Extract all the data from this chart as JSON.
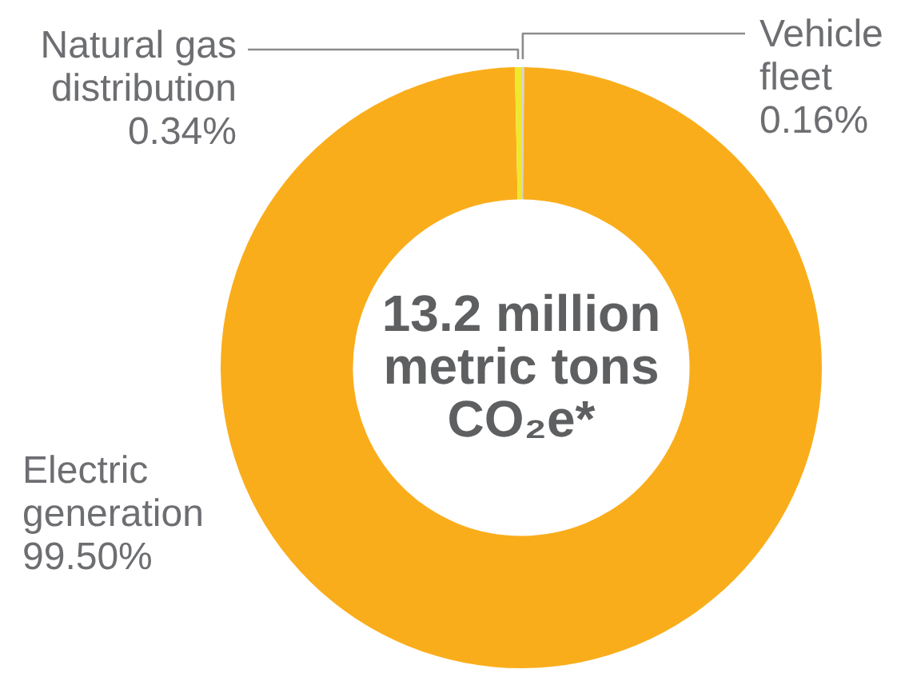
{
  "chart_data": {
    "type": "donut",
    "categories": [
      "Vehicle fleet",
      "Electric generation",
      "Natural gas distribution"
    ],
    "values": [
      0.16,
      99.5,
      0.34
    ],
    "value_labels": [
      "0.16%",
      "99.50%",
      "0.34%"
    ],
    "colors": [
      "#d6d4cc",
      "#faad1b",
      "#efe82e"
    ],
    "annotations": [
      "13.2 million metric tons CO₂e*"
    ]
  }
}
